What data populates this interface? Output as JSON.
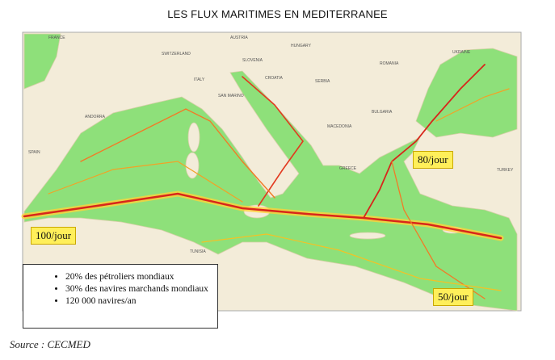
{
  "title": "LES FLUX MARITIMES EN MEDITERRANEE",
  "countries": [
    "FRANCE",
    "AUSTRIA",
    "SWITZERLAND",
    "SLOVENIA",
    "HUNGARY",
    "CROATIA",
    "SERBIA",
    "ROMANIA",
    "UKRAINE",
    "ITALY",
    "SAN MARINO",
    "MACEDONIA",
    "BULGARIA",
    "ANDORRA",
    "SPAIN",
    "GREECE",
    "TURKEY",
    "TUNISIA"
  ],
  "callouts": [
    "100/jour",
    "80/jour",
    "50/jour"
  ],
  "facts": [
    "20% des pétroliers mondiaux",
    "30% des navires marchands mondiaux",
    "120 000 navires/an"
  ],
  "source": "Source : CECMED"
}
